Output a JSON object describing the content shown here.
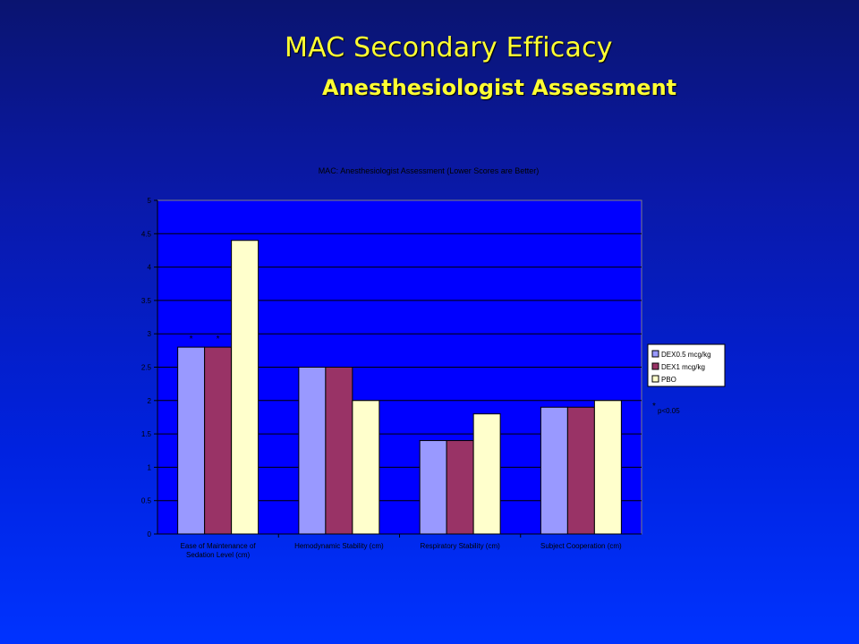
{
  "slide": {
    "title": "MAC Secondary Efficacy",
    "subtitle": "Anesthesiologist Assessment"
  },
  "colors": {
    "background_top": "#0a1470",
    "background_bottom": "#0033ff",
    "title_text": "#ffff33",
    "plot_area": "#0000ff"
  },
  "footnote": {
    "marker": "*",
    "text": "p<0.05"
  },
  "chart_data": {
    "type": "bar",
    "title": "MAC: Anesthesiologist Assessment (Lower Scores are Better)",
    "xlabel": "",
    "ylabel": "",
    "ylim": [
      0,
      5
    ],
    "yticks": [
      "0",
      "0.5",
      "1",
      "1.5",
      "2",
      "2.5",
      "3",
      "3.5",
      "4",
      "4.5",
      "5"
    ],
    "grid": true,
    "legend_position": "right",
    "categories": [
      [
        "Ease of Maintenance of",
        "Sedation Level (cm)"
      ],
      [
        "Hemodynamic Stability (cm)"
      ],
      [
        "Respiratory Stability (cm)"
      ],
      [
        "Subject Cooperation (cm)"
      ]
    ],
    "series": [
      {
        "name": "DEX0.5 mcg/kg",
        "color": "#9999ff",
        "values": [
          2.8,
          2.5,
          1.4,
          1.9
        ],
        "significant": [
          true,
          false,
          false,
          false
        ]
      },
      {
        "name": "DEX1 mcg/kg",
        "color": "#993366",
        "values": [
          2.8,
          2.5,
          1.4,
          1.9
        ],
        "significant": [
          true,
          false,
          false,
          false
        ]
      },
      {
        "name": "PBO",
        "color": "#ffffcc",
        "values": [
          4.4,
          2.0,
          1.8,
          2.0
        ],
        "significant": [
          false,
          false,
          false,
          false
        ]
      }
    ]
  }
}
